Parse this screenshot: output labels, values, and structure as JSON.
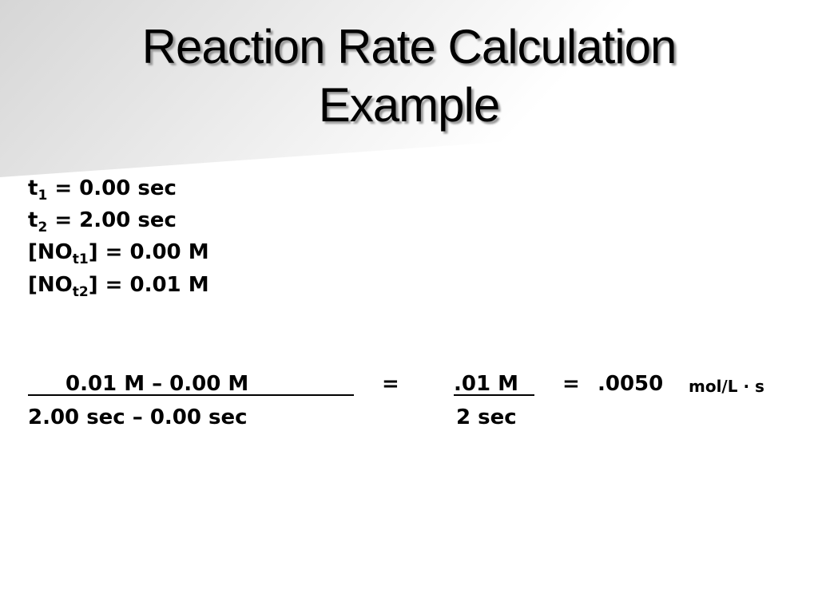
{
  "header": {
    "title_lines": [
      "Reaction Rate Calculation",
      "Example"
    ]
  },
  "givens": [
    {
      "base": "t",
      "sub": "1",
      "rest": " = 0.00 sec"
    },
    {
      "base": "t",
      "sub": "2",
      "rest": " = 2.00 sec"
    },
    {
      "base": "[NO",
      "sub": "t1",
      "rest": "] = 0.00 M"
    },
    {
      "base": "[NO",
      "sub": "t2",
      "rest": "] = 0.01 M"
    }
  ],
  "equation": {
    "numerator": "0.01 M – 0.00 M",
    "denominator": "2.00 sec – 0.00 sec",
    "equals": "=",
    "simplified_numerator": ".01 M",
    "simplified_denominator": "2 sec",
    "result": ".0050",
    "result_unit": "mol/L · s"
  }
}
